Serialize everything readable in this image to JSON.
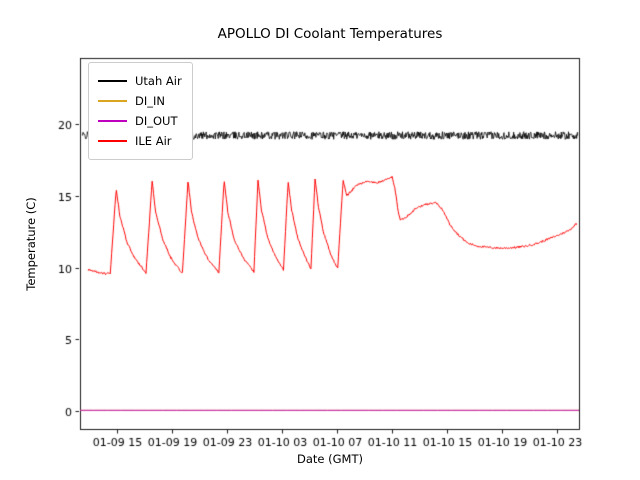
{
  "figure": {
    "background": "#ffffff"
  },
  "chart_data": {
    "type": "line",
    "title": "APOLLO DI Coolant Temperatures",
    "xlabel": "Date (GMT)",
    "ylabel": "Temperature (C)",
    "x_unit": "hours since 01-09 12:00 GMT",
    "xlim": [
      0.3,
      36.6
    ],
    "ylim": [
      -1.25,
      24.6
    ],
    "xticks": [
      3,
      7,
      11,
      15,
      19,
      23,
      27,
      31,
      35
    ],
    "xtick_labels": [
      "01-09 15",
      "01-09 19",
      "01-09 23",
      "01-10 03",
      "01-10 07",
      "01-10 11",
      "01-10 15",
      "01-10 19",
      "01-10 23"
    ],
    "yticks": [
      0,
      5,
      10,
      15,
      20
    ],
    "grid": false,
    "legend_position": "upper left",
    "series": [
      {
        "name": "Utah Air",
        "color": "#000000",
        "line_width": 0.8,
        "noise": 0.27,
        "sample_hours": 0.035,
        "points": [
          [
            0.45,
            19.2
          ],
          [
            36.5,
            19.2
          ]
        ]
      },
      {
        "name": "DI_IN",
        "color": "#daa520",
        "line_width": 0.9,
        "noise": 0,
        "sample_hours": 1,
        "points": [
          [
            0.31,
            0.05
          ],
          [
            36.6,
            0.05
          ]
        ]
      },
      {
        "name": "DI_OUT",
        "color": "#bf00bf",
        "line_width": 0.9,
        "noise": 0,
        "sample_hours": 1,
        "points": [
          [
            0.31,
            0.05
          ],
          [
            36.6,
            0.05
          ]
        ]
      },
      {
        "name": "ILE Air",
        "color": "#ff0000",
        "line_width": 1.0,
        "noise": 0.07,
        "sample_hours": 0.05,
        "points": [
          [
            0.9,
            9.85
          ],
          [
            1.5,
            9.7
          ],
          [
            2.2,
            9.55
          ],
          [
            2.5,
            9.6
          ],
          [
            2.93,
            15.5
          ],
          [
            3.2,
            13.6
          ],
          [
            3.7,
            11.8
          ],
          [
            4.3,
            10.6
          ],
          [
            4.9,
            9.9
          ],
          [
            5.1,
            9.6
          ],
          [
            5.55,
            16.05
          ],
          [
            5.8,
            13.9
          ],
          [
            6.3,
            12.0
          ],
          [
            6.9,
            10.7
          ],
          [
            7.5,
            9.9
          ],
          [
            7.75,
            9.6
          ],
          [
            8.16,
            16.1
          ],
          [
            8.4,
            13.9
          ],
          [
            8.9,
            12.0
          ],
          [
            9.6,
            10.6
          ],
          [
            10.2,
            9.9
          ],
          [
            10.4,
            9.65
          ],
          [
            10.78,
            16.1
          ],
          [
            11.05,
            13.9
          ],
          [
            11.5,
            12.0
          ],
          [
            12.2,
            10.6
          ],
          [
            12.8,
            9.9
          ],
          [
            12.95,
            9.7
          ],
          [
            13.25,
            16.15
          ],
          [
            13.5,
            14.0
          ],
          [
            13.95,
            12.1
          ],
          [
            14.5,
            10.8
          ],
          [
            15.0,
            10.0
          ],
          [
            15.1,
            9.8
          ],
          [
            15.44,
            16.0
          ],
          [
            15.7,
            14.0
          ],
          [
            16.1,
            12.2
          ],
          [
            16.6,
            10.9
          ],
          [
            17.0,
            10.1
          ],
          [
            17.1,
            9.9
          ],
          [
            17.4,
            16.2
          ],
          [
            17.65,
            14.2
          ],
          [
            18.0,
            12.5
          ],
          [
            18.5,
            11.0
          ],
          [
            18.9,
            10.2
          ],
          [
            19.05,
            10.0
          ],
          [
            19.44,
            16.1
          ],
          [
            19.7,
            15.0
          ],
          [
            20.0,
            15.3
          ],
          [
            20.5,
            15.8
          ],
          [
            21.2,
            16.0
          ],
          [
            21.9,
            15.9
          ],
          [
            22.5,
            16.1
          ],
          [
            23.0,
            16.3
          ],
          [
            23.2,
            15.6
          ],
          [
            23.45,
            13.9
          ],
          [
            23.6,
            13.3
          ],
          [
            24.0,
            13.5
          ],
          [
            24.7,
            14.1
          ],
          [
            25.4,
            14.4
          ],
          [
            26.2,
            14.5
          ],
          [
            26.7,
            14.0
          ],
          [
            27.2,
            13.0
          ],
          [
            27.8,
            12.3
          ],
          [
            28.5,
            11.7
          ],
          [
            29.2,
            11.5
          ],
          [
            30.0,
            11.4
          ],
          [
            31.0,
            11.35
          ],
          [
            32.0,
            11.4
          ],
          [
            32.8,
            11.5
          ],
          [
            33.6,
            11.7
          ],
          [
            34.4,
            12.0
          ],
          [
            35.2,
            12.3
          ],
          [
            35.9,
            12.6
          ],
          [
            36.4,
            13.05
          ]
        ]
      }
    ]
  }
}
